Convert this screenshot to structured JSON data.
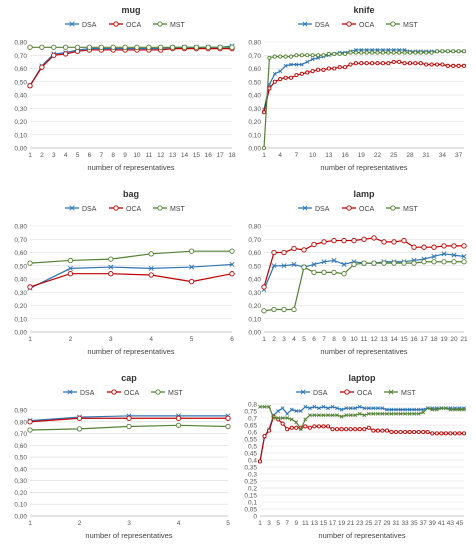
{
  "chart_data": [
    {
      "type": "line",
      "title": "mug",
      "xlabel": "number of representatives",
      "ylabel": "",
      "x": [
        1,
        2,
        3,
        4,
        5,
        6,
        7,
        8,
        9,
        10,
        11,
        12,
        13,
        14,
        15,
        16,
        17,
        18
      ],
      "xticks": [
        "1",
        "2",
        "3",
        "4",
        "5",
        "6",
        "7",
        "8",
        "9",
        "10",
        "11",
        "12",
        "13",
        "14",
        "15",
        "16",
        "17",
        "18"
      ],
      "ylim": [
        0,
        0.8
      ],
      "yticks": [
        "0,00",
        "0,10",
        "0,20",
        "0,30",
        "0,40",
        "0,50",
        "0,60",
        "0,70",
        "0,80"
      ],
      "legend_position": "top",
      "series": [
        {
          "name": "DSA",
          "color": "#2e75b6",
          "marker": "x",
          "values": [
            0.47,
            0.62,
            0.71,
            0.72,
            0.74,
            0.75,
            0.75,
            0.75,
            0.75,
            0.75,
            0.75,
            0.75,
            0.76,
            0.76,
            0.76,
            0.76,
            0.76,
            0.77
          ]
        },
        {
          "name": "OCA",
          "color": "#c00000",
          "marker": "o",
          "values": [
            0.47,
            0.61,
            0.7,
            0.71,
            0.73,
            0.74,
            0.74,
            0.74,
            0.74,
            0.74,
            0.74,
            0.74,
            0.75,
            0.75,
            0.75,
            0.75,
            0.75,
            0.75
          ]
        },
        {
          "name": "MST",
          "color": "#548235",
          "marker": "o",
          "values": [
            0.76,
            0.76,
            0.76,
            0.76,
            0.76,
            0.76,
            0.76,
            0.76,
            0.76,
            0.76,
            0.76,
            0.76,
            0.76,
            0.76,
            0.76,
            0.76,
            0.76,
            0.76
          ]
        }
      ]
    },
    {
      "type": "line",
      "title": "knife",
      "xlabel": "number of representatives",
      "ylabel": "",
      "x": [
        1,
        2,
        3,
        4,
        5,
        6,
        7,
        8,
        9,
        10,
        11,
        12,
        13,
        14,
        15,
        16,
        17,
        18,
        19,
        20,
        21,
        22,
        23,
        24,
        25,
        26,
        27,
        28,
        29,
        30,
        31,
        32,
        33,
        34,
        35,
        36,
        37,
        38
      ],
      "xticks": [
        "1",
        "4",
        "7",
        "10",
        "13",
        "16",
        "19",
        "22",
        "25",
        "28",
        "31",
        "34",
        "37"
      ],
      "xtick_positions": [
        1,
        4,
        7,
        10,
        13,
        16,
        19,
        22,
        25,
        28,
        31,
        34,
        37
      ],
      "ylim": [
        0,
        0.8
      ],
      "yticks": [
        "0,00",
        "0,10",
        "0,20",
        "0,30",
        "0,40",
        "0,50",
        "0,60",
        "0,70",
        "0,80"
      ],
      "legend_position": "top",
      "series": [
        {
          "name": "DSA",
          "color": "#2e75b6",
          "marker": "x",
          "values": [
            0.29,
            0.48,
            0.56,
            0.58,
            0.62,
            0.63,
            0.63,
            0.63,
            0.65,
            0.67,
            0.68,
            0.69,
            0.7,
            0.71,
            0.72,
            0.72,
            0.73,
            0.74,
            0.74,
            0.74,
            0.74,
            0.74,
            0.74,
            0.74,
            0.74,
            0.74,
            0.74,
            0.73,
            0.73,
            0.73,
            0.73,
            0.73,
            0.73,
            0.73,
            0.73,
            0.73,
            0.73,
            0.73
          ]
        },
        {
          "name": "OCA",
          "color": "#c00000",
          "marker": "o",
          "values": [
            0.27,
            0.45,
            0.5,
            0.52,
            0.53,
            0.53,
            0.55,
            0.56,
            0.57,
            0.58,
            0.59,
            0.59,
            0.6,
            0.6,
            0.61,
            0.61,
            0.63,
            0.64,
            0.64,
            0.64,
            0.64,
            0.64,
            0.64,
            0.64,
            0.65,
            0.65,
            0.64,
            0.64,
            0.64,
            0.64,
            0.63,
            0.63,
            0.63,
            0.63,
            0.62,
            0.62,
            0.62,
            0.62
          ]
        },
        {
          "name": "MST",
          "color": "#548235",
          "marker": "o",
          "values": [
            0.0,
            0.68,
            0.69,
            0.69,
            0.69,
            0.69,
            0.7,
            0.7,
            0.7,
            0.7,
            0.7,
            0.7,
            0.71,
            0.71,
            0.71,
            0.71,
            0.72,
            0.72,
            0.72,
            0.72,
            0.72,
            0.72,
            0.72,
            0.72,
            0.72,
            0.72,
            0.72,
            0.72,
            0.72,
            0.72,
            0.72,
            0.72,
            0.73,
            0.73,
            0.73,
            0.73,
            0.73,
            0.73
          ]
        }
      ]
    },
    {
      "type": "line",
      "title": "bag",
      "xlabel": "number of representatives",
      "ylabel": "",
      "x": [
        1,
        2,
        3,
        4,
        5,
        6
      ],
      "xticks": [
        "1",
        "2",
        "3",
        "4",
        "5",
        "6"
      ],
      "ylim": [
        0,
        0.8
      ],
      "yticks": [
        "0,00",
        "0,10",
        "0,20",
        "0,30",
        "0,40",
        "0,50",
        "0,60",
        "0,70",
        "0,80"
      ],
      "legend_position": "top",
      "series": [
        {
          "name": "DSA",
          "color": "#2e75b6",
          "marker": "x",
          "values": [
            0.33,
            0.48,
            0.49,
            0.48,
            0.49,
            0.51
          ]
        },
        {
          "name": "OCA",
          "color": "#c00000",
          "marker": "o",
          "values": [
            0.34,
            0.44,
            0.44,
            0.43,
            0.38,
            0.44
          ]
        },
        {
          "name": "MST",
          "color": "#548235",
          "marker": "o",
          "values": [
            0.52,
            0.54,
            0.55,
            0.59,
            0.61,
            0.61
          ]
        }
      ]
    },
    {
      "type": "line",
      "title": "lamp",
      "xlabel": "number of representatives",
      "ylabel": "",
      "x": [
        1,
        2,
        3,
        4,
        5,
        6,
        7,
        8,
        9,
        10,
        11,
        12,
        13,
        14,
        15,
        16,
        17,
        18,
        19,
        20,
        21
      ],
      "xticks": [
        "1",
        "2",
        "3",
        "4",
        "5",
        "6",
        "7",
        "8",
        "9",
        "10",
        "11",
        "12",
        "13",
        "14",
        "15",
        "16",
        "17",
        "18",
        "19",
        "20",
        "21"
      ],
      "ylim": [
        0,
        0.8
      ],
      "yticks": [
        "0,00",
        "0,10",
        "0,20",
        "0,30",
        "0,40",
        "0,50",
        "0,60",
        "0,70",
        "0,80"
      ],
      "legend_position": "top",
      "series": [
        {
          "name": "DSA",
          "color": "#2e75b6",
          "marker": "x",
          "values": [
            0.32,
            0.5,
            0.5,
            0.51,
            0.49,
            0.51,
            0.53,
            0.54,
            0.51,
            0.53,
            0.52,
            0.52,
            0.53,
            0.53,
            0.53,
            0.54,
            0.55,
            0.57,
            0.59,
            0.58,
            0.57
          ]
        },
        {
          "name": "OCA",
          "color": "#c00000",
          "marker": "o",
          "values": [
            0.34,
            0.6,
            0.6,
            0.63,
            0.62,
            0.66,
            0.68,
            0.69,
            0.69,
            0.69,
            0.7,
            0.71,
            0.68,
            0.68,
            0.69,
            0.64,
            0.64,
            0.64,
            0.65,
            0.65,
            0.65
          ]
        },
        {
          "name": "MST",
          "color": "#548235",
          "marker": "o",
          "values": [
            0.16,
            0.17,
            0.17,
            0.17,
            0.49,
            0.45,
            0.45,
            0.45,
            0.44,
            0.51,
            0.52,
            0.52,
            0.52,
            0.52,
            0.52,
            0.52,
            0.53,
            0.53,
            0.53,
            0.53,
            0.53
          ]
        }
      ]
    },
    {
      "type": "line",
      "title": "cap",
      "xlabel": "number of representatives",
      "ylabel": "",
      "x": [
        1,
        2,
        3,
        4,
        5
      ],
      "xticks": [
        "1",
        "2",
        "3",
        "4",
        "5"
      ],
      "ylim": [
        0,
        0.9
      ],
      "yticks": [
        "0,00",
        "0,10",
        "0,20",
        "0,30",
        "0,40",
        "0,50",
        "0,60",
        "0,70",
        "0,80",
        "0,90"
      ],
      "legend_position": "top",
      "series": [
        {
          "name": "DSA",
          "color": "#2e75b6",
          "marker": "x",
          "values": [
            0.81,
            0.84,
            0.85,
            0.85,
            0.85
          ]
        },
        {
          "name": "OCA",
          "color": "#c00000",
          "marker": "o",
          "values": [
            0.8,
            0.83,
            0.83,
            0.83,
            0.83
          ]
        },
        {
          "name": "MST",
          "color": "#548235",
          "marker": "o",
          "values": [
            0.73,
            0.74,
            0.76,
            0.77,
            0.76
          ]
        }
      ]
    },
    {
      "type": "line",
      "title": "laptop",
      "xlabel": "number of representatives",
      "ylabel": "",
      "x": [
        1,
        2,
        3,
        4,
        5,
        6,
        7,
        8,
        9,
        10,
        11,
        12,
        13,
        14,
        15,
        16,
        17,
        18,
        19,
        20,
        21,
        22,
        23,
        24,
        25,
        26,
        27,
        28,
        29,
        30,
        31,
        32,
        33,
        34,
        35,
        36,
        37,
        38,
        39,
        40,
        41,
        42,
        43,
        44,
        45,
        46
      ],
      "xticks": [
        "1",
        "3",
        "5",
        "7",
        "9",
        "11",
        "13",
        "15",
        "17",
        "19",
        "21",
        "23",
        "25",
        "27",
        "29",
        "31",
        "33",
        "35",
        "37",
        "39",
        "41",
        "43",
        "45"
      ],
      "xtick_positions": [
        1,
        3,
        5,
        7,
        9,
        11,
        13,
        15,
        17,
        19,
        21,
        23,
        25,
        27,
        29,
        31,
        33,
        35,
        37,
        39,
        41,
        43,
        45
      ],
      "ylim": [
        0,
        0.8
      ],
      "yticks": [
        "0",
        "0,05",
        "0,1",
        "0,15",
        "0,2",
        "0,25",
        "0,3",
        "0,35",
        "0,4",
        "0,45",
        "0,5",
        "0,55",
        "0,6",
        "0,65",
        "0,7",
        "0,75",
        "0,8"
      ],
      "legend_position": "top",
      "series": [
        {
          "name": "DSA",
          "color": "#2e75b6",
          "marker": "x",
          "values": [
            0.39,
            0.57,
            0.62,
            0.72,
            0.75,
            0.77,
            0.73,
            0.76,
            0.75,
            0.75,
            0.78,
            0.77,
            0.78,
            0.77,
            0.78,
            0.77,
            0.78,
            0.77,
            0.76,
            0.77,
            0.77,
            0.77,
            0.78,
            0.77,
            0.77,
            0.77,
            0.77,
            0.77,
            0.76,
            0.76,
            0.76,
            0.76,
            0.76,
            0.76,
            0.76,
            0.76,
            0.76,
            0.77,
            0.77,
            0.77,
            0.77,
            0.77,
            0.77,
            0.77,
            0.77,
            0.77
          ]
        },
        {
          "name": "OCA",
          "color": "#c00000",
          "marker": "o",
          "values": [
            0.39,
            0.57,
            0.61,
            0.71,
            0.69,
            0.66,
            0.62,
            0.63,
            0.63,
            0.63,
            0.64,
            0.63,
            0.64,
            0.64,
            0.64,
            0.64,
            0.62,
            0.62,
            0.62,
            0.62,
            0.62,
            0.62,
            0.62,
            0.62,
            0.63,
            0.61,
            0.61,
            0.61,
            0.61,
            0.6,
            0.6,
            0.6,
            0.6,
            0.6,
            0.6,
            0.6,
            0.6,
            0.6,
            0.59,
            0.59,
            0.59,
            0.59,
            0.59,
            0.59,
            0.59,
            0.59
          ]
        },
        {
          "name": "MST",
          "color": "#548235",
          "marker": "x",
          "values": [
            0.78,
            0.78,
            0.78,
            0.7,
            0.7,
            0.7,
            0.7,
            0.69,
            0.67,
            0.62,
            0.69,
            0.72,
            0.72,
            0.72,
            0.72,
            0.72,
            0.72,
            0.72,
            0.71,
            0.72,
            0.72,
            0.72,
            0.73,
            0.72,
            0.73,
            0.73,
            0.73,
            0.73,
            0.73,
            0.73,
            0.73,
            0.73,
            0.73,
            0.73,
            0.73,
            0.73,
            0.74,
            0.77,
            0.76,
            0.76,
            0.77,
            0.77,
            0.76,
            0.76,
            0.76,
            0.76
          ]
        }
      ]
    }
  ]
}
